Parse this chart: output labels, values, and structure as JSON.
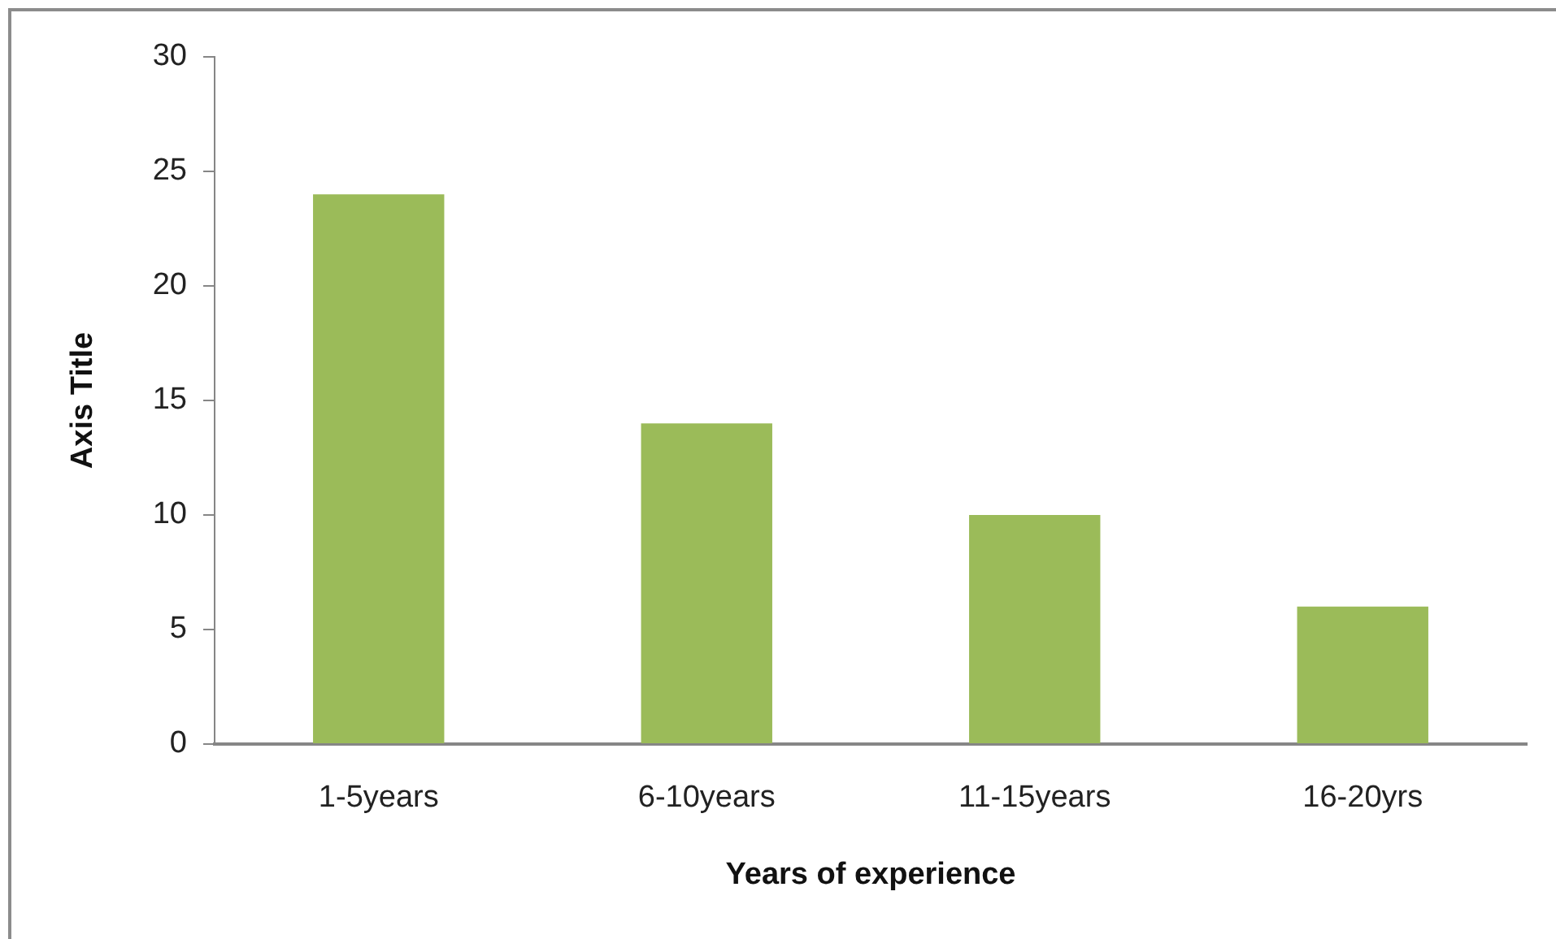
{
  "chart_data": {
    "type": "bar",
    "xlabel": "Years of experience",
    "ylabel": "Axis Title",
    "categories": [
      "1-5years",
      "6-10years",
      "11-15years",
      "16-20yrs"
    ],
    "values": [
      24,
      14,
      10,
      6
    ],
    "color": "#9bbb59",
    "ylim": [
      0,
      30
    ],
    "yticks": [
      0,
      5,
      10,
      15,
      20,
      25,
      30
    ],
    "grid": false
  }
}
